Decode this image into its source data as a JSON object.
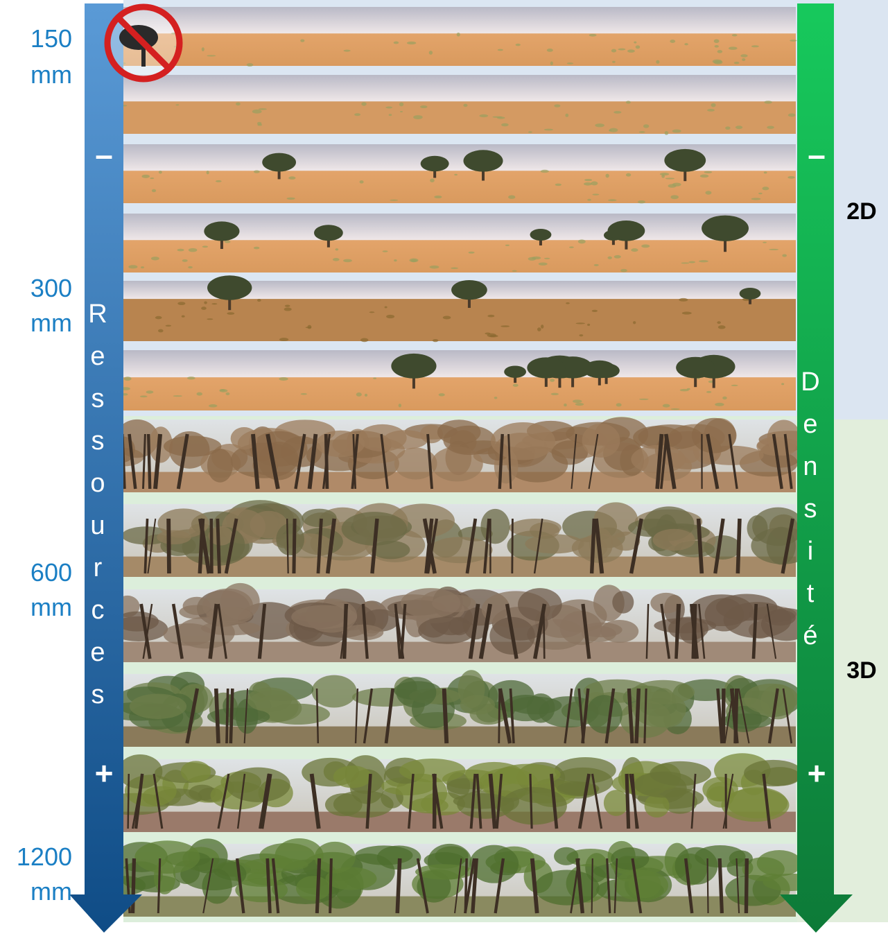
{
  "rainfall_labels": [
    {
      "value": "150",
      "unit": "mm"
    },
    {
      "value": "300",
      "unit": "mm"
    },
    {
      "value": "600",
      "unit": "mm"
    },
    {
      "value": "1200",
      "unit": "mm"
    }
  ],
  "left_arrow": {
    "label": "Ressources",
    "minus": "–",
    "plus": "+"
  },
  "right_arrow": {
    "label": "Densité",
    "minus": "–",
    "plus": "+"
  },
  "zones": [
    "2D",
    "3D"
  ]
}
